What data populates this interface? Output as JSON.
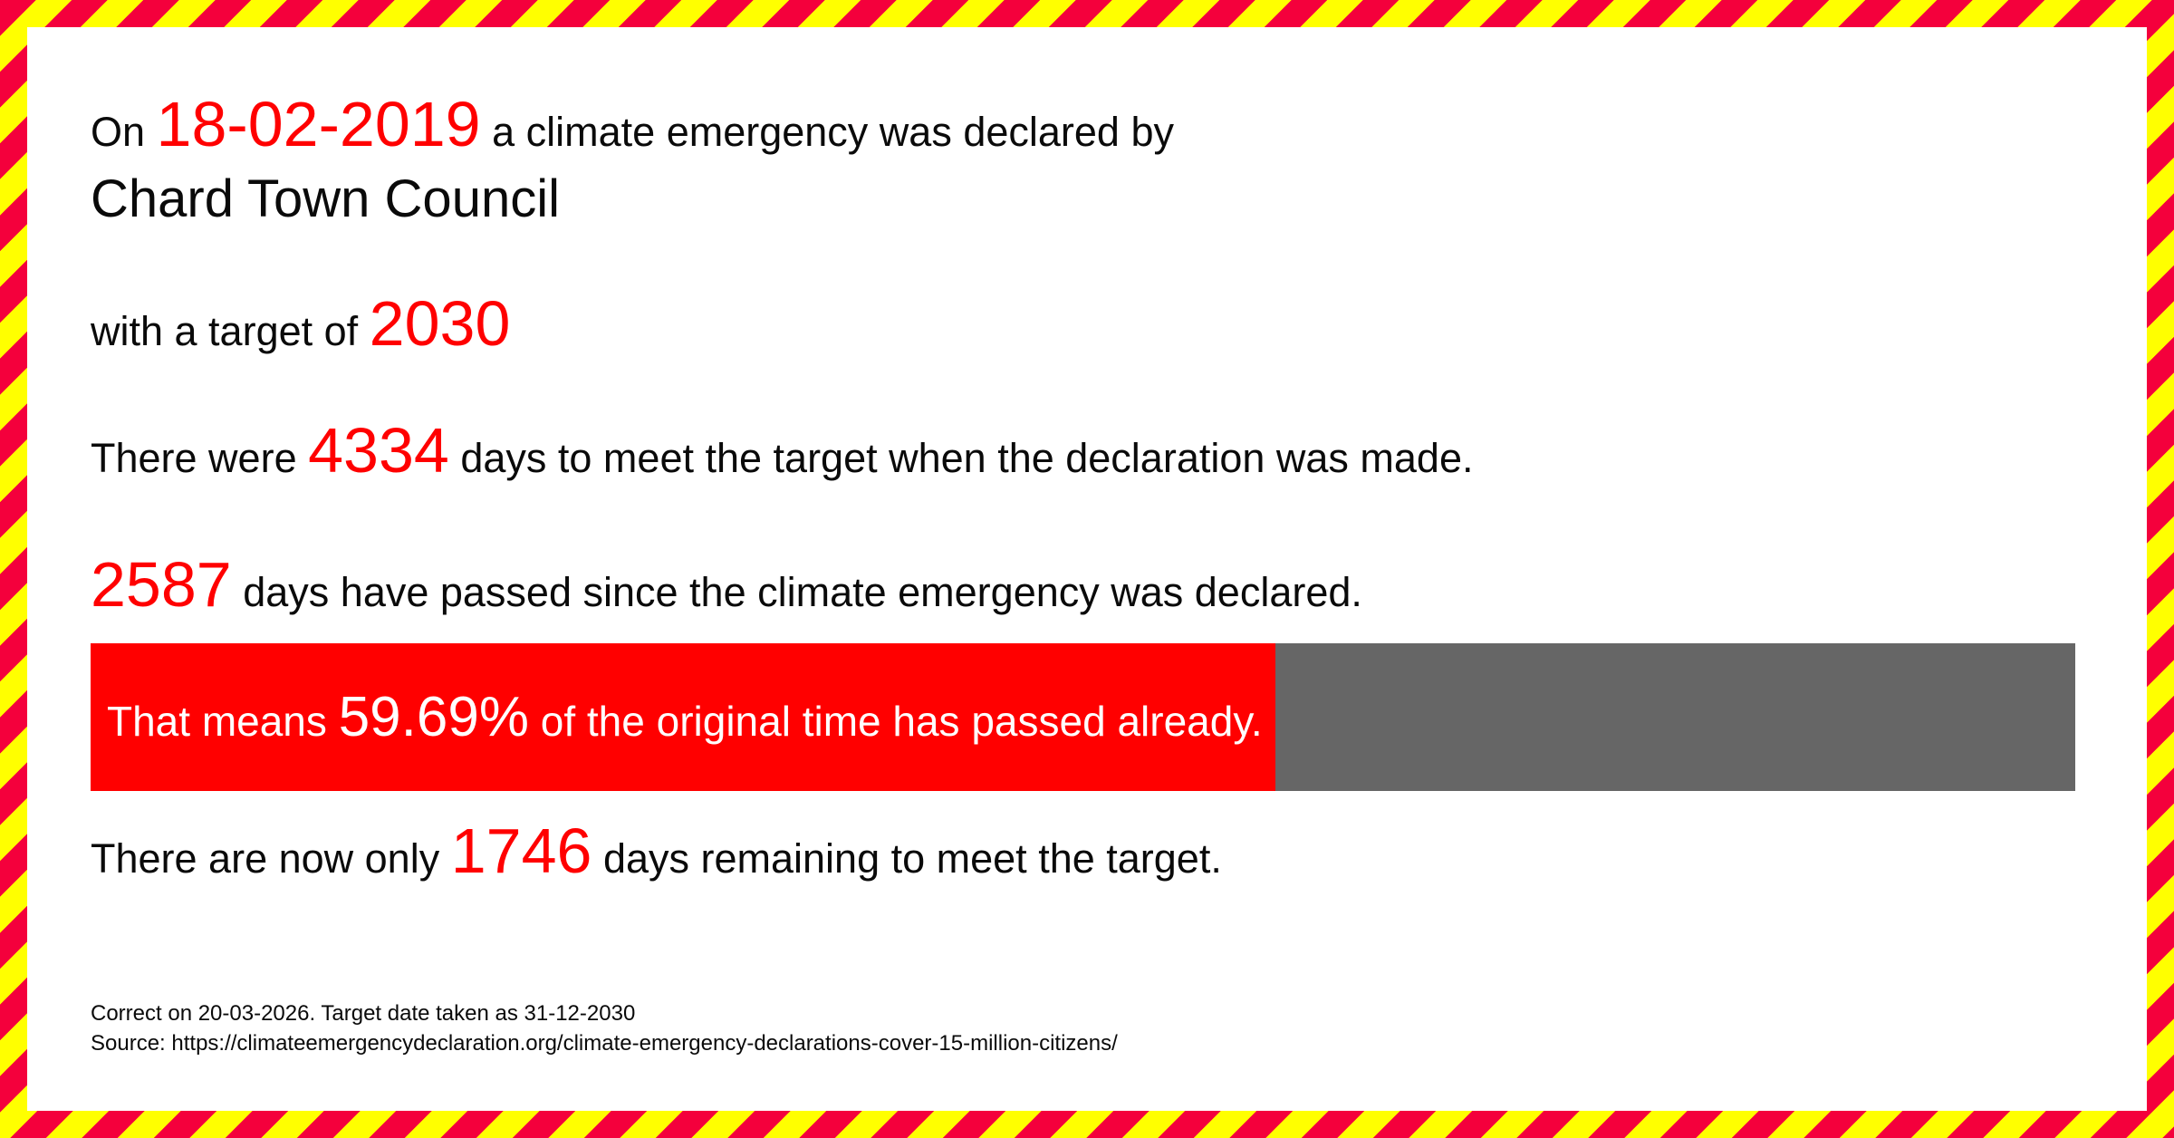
{
  "colors": {
    "stripe_red": "#f4003c",
    "stripe_yellow": "#ffff00",
    "accent_red": "#ff0000",
    "bar_fill_red": "#ff0000",
    "bar_remaining_gray": "#666666",
    "text_black": "#0a0a0a",
    "panel_white": "#ffffff"
  },
  "declaration": {
    "intro_prefix": "On ",
    "date": "18-02-2019",
    "intro_suffix": " a climate emergency was declared by",
    "council_name": "Chard Town Council",
    "target_prefix": "with a target of ",
    "target_year": "2030"
  },
  "stats": {
    "original_days_prefix": "There were ",
    "original_days": "4334",
    "original_days_suffix": " days to meet the target when the declaration was made.",
    "passed_days": "2587",
    "passed_days_suffix": " days have passed since the climate emergency was declared.",
    "remaining_prefix": "There are now only ",
    "remaining_days": "1746",
    "remaining_suffix": " days remaining to meet the target."
  },
  "progress": {
    "percent": 59.69,
    "label_prefix": "That means ",
    "percent_label": "59.69%",
    "label_suffix": " of the original time has passed already."
  },
  "footer": {
    "correct_line": "Correct on 20-03-2026. Target date taken as 31-12-2030",
    "source_line": "Source: https://climateemergencydeclaration.org/climate-emergency-declarations-cover-15-million-citizens/"
  }
}
